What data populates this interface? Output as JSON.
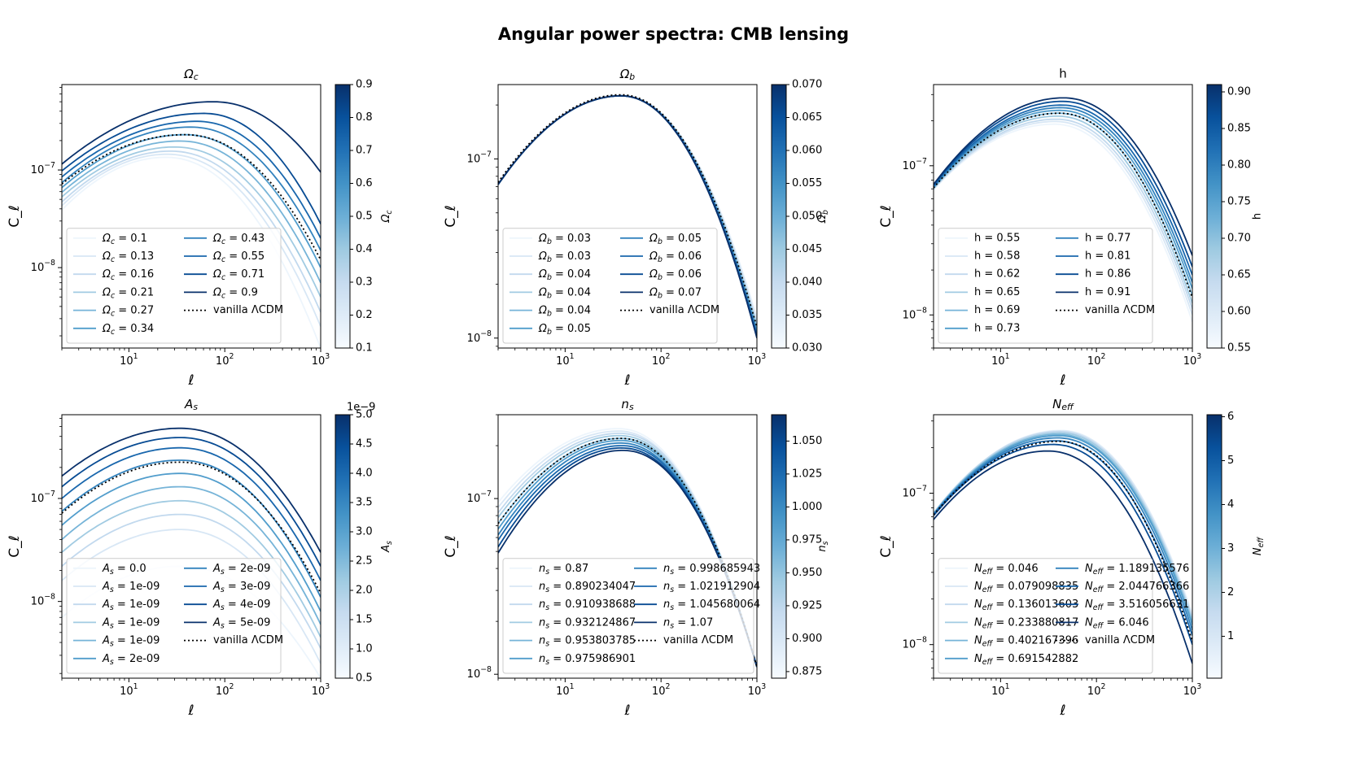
{
  "figure": {
    "title": "Angular power spectra: CMB lensing"
  },
  "style": {
    "line_color": "#000000",
    "ref_color": "#000000",
    "cmap_light": "#f7fbff",
    "cmap_dark": "#08306b"
  },
  "chart_data": [
    {
      "type": "line",
      "title": "Ω_c",
      "xlabel": "ℓ",
      "ylabel": "C_ℓ",
      "x_scale": "log",
      "y_scale": "log",
      "xlim": [
        2,
        1000
      ],
      "ylim": [
        1.5e-09,
        7.5e-07
      ],
      "x_ticks": [
        "10^1",
        "10^2",
        "10^3"
      ],
      "y_ticks": [
        "10^-8",
        "10^-7"
      ],
      "peaks": [
        [
          24,
          1.35e-07
        ],
        [
          25,
          1.45e-07
        ],
        [
          27,
          1.56e-07
        ],
        [
          30,
          1.72e-07
        ],
        [
          34,
          1.98e-07
        ],
        [
          38,
          2.3e-07
        ],
        [
          44,
          2.75e-07
        ],
        [
          51,
          3.15e-07
        ],
        [
          60,
          3.8e-07
        ],
        [
          75,
          5e-07
        ]
      ],
      "series": [
        {
          "name": "Ω_c = 0.1",
          "values": [
            3.9e-08,
            1.35e-07,
            1.5e-09
          ]
        },
        {
          "name": "Ω_c = 0.13",
          "values": [
            4.3e-08,
            1.45e-07,
            2.5e-09
          ]
        },
        {
          "name": "Ω_c = 0.16",
          "values": [
            4.7e-08,
            1.56e-07,
            3.5e-09
          ]
        },
        {
          "name": "Ω_c = 0.21",
          "values": [
            5.3e-08,
            1.72e-07,
            5e-09
          ]
        },
        {
          "name": "Ω_c = 0.27",
          "values": [
            5.9e-08,
            1.98e-07,
            7e-09
          ]
        },
        {
          "name": "Ω_c = 0.34",
          "values": [
            6.6e-08,
            2.3e-07,
            1e-08
          ]
        },
        {
          "name": "Ω_c = 0.43",
          "values": [
            7.4e-08,
            2.75e-07,
            1.5e-08
          ]
        },
        {
          "name": "Ω_c = 0.55",
          "values": [
            8.5e-08,
            3.15e-07,
            2e-08
          ]
        },
        {
          "name": "Ω_c = 0.71",
          "values": [
            9.8e-08,
            3.8e-07,
            2.8e-08
          ]
        },
        {
          "name": "Ω_c = 0.9",
          "values": [
            1.15e-07,
            5e-07,
            9.5e-08
          ]
        }
      ],
      "reference": {
        "name": "vanilla ΛCDM",
        "values": [
          7.2e-08,
          2.3e-07,
          1.2e-08
        ]
      },
      "colorbar": {
        "label": "Ω_c",
        "min": 0.1,
        "max": 0.9,
        "ticks": [
          "0.1",
          "0.2",
          "0.3",
          "0.4",
          "0.5",
          "0.6",
          "0.7",
          "0.8",
          "0.9"
        ],
        "offset": ""
      },
      "legend": "lower-left"
    },
    {
      "type": "line",
      "title": "Ω_b",
      "xlabel": "ℓ",
      "ylabel": "C_ℓ",
      "x_scale": "log",
      "y_scale": "log",
      "xlim": [
        2,
        1000
      ],
      "ylim": [
        8.8e-09,
        2.6e-07
      ],
      "x_ticks": [
        "10^1",
        "10^2",
        "10^3"
      ],
      "y_ticks": [
        "10^-8",
        "10^-7"
      ],
      "peaks": [
        [
          38,
          2.25e-07
        ],
        [
          38,
          2.25e-07
        ],
        [
          38,
          2.25e-07
        ],
        [
          38,
          2.25e-07
        ],
        [
          38,
          2.25e-07
        ],
        [
          38,
          2.25e-07
        ],
        [
          38,
          2.25e-07
        ],
        [
          38,
          2.25e-07
        ],
        [
          38,
          2.25e-07
        ],
        [
          38,
          2.25e-07
        ]
      ],
      "series": [
        {
          "name": "Ω_b = 0.03",
          "values": [
            7.2e-08,
            2.25e-07,
            1.3e-08
          ]
        },
        {
          "name": "Ω_b = 0.03",
          "values": [
            7.2e-08,
            2.25e-07,
            1.25e-08
          ]
        },
        {
          "name": "Ω_b = 0.04",
          "values": [
            7.2e-08,
            2.25e-07,
            1.2e-08
          ]
        },
        {
          "name": "Ω_b = 0.04",
          "values": [
            7.2e-08,
            2.25e-07,
            1.16e-08
          ]
        },
        {
          "name": "Ω_b = 0.04",
          "values": [
            7.2e-08,
            2.25e-07,
            1.12e-08
          ]
        },
        {
          "name": "Ω_b = 0.05",
          "values": [
            7.2e-08,
            2.25e-07,
            1.09e-08
          ]
        },
        {
          "name": "Ω_b = 0.05",
          "values": [
            7.2e-08,
            2.25e-07,
            1.06e-08
          ]
        },
        {
          "name": "Ω_b = 0.06",
          "values": [
            7.2e-08,
            2.25e-07,
            1.04e-08
          ]
        },
        {
          "name": "Ω_b = 0.06",
          "values": [
            7.2e-08,
            2.25e-07,
            1.02e-08
          ]
        },
        {
          "name": "Ω_b = 0.07",
          "values": [
            7.2e-08,
            2.25e-07,
            1e-08
          ]
        }
      ],
      "reference": {
        "name": "vanilla ΛCDM",
        "values": [
          7.4e-08,
          2.28e-07,
          1.15e-08
        ]
      },
      "colorbar": {
        "label": "Ω_b",
        "min": 0.03,
        "max": 0.07,
        "ticks": [
          "0.030",
          "0.035",
          "0.040",
          "0.045",
          "0.050",
          "0.055",
          "0.060",
          "0.065",
          "0.070"
        ],
        "offset": ""
      },
      "legend": "lower-left"
    },
    {
      "type": "line",
      "title": "h",
      "xlabel": "ℓ",
      "ylabel": "C_ℓ",
      "x_scale": "log",
      "y_scale": "log",
      "xlim": [
        2,
        1000
      ],
      "ylim": [
        6e-09,
        3.5e-07
      ],
      "x_ticks": [
        "10^1",
        "10^2",
        "10^3"
      ],
      "y_ticks": [
        "10^-8",
        "10^-7"
      ],
      "peaks": [
        [
          36,
          1.9e-07
        ],
        [
          37,
          1.98e-07
        ],
        [
          38,
          2.05e-07
        ],
        [
          39,
          2.15e-07
        ],
        [
          40,
          2.25e-07
        ],
        [
          41,
          2.35e-07
        ],
        [
          42,
          2.45e-07
        ],
        [
          43,
          2.55e-07
        ],
        [
          44,
          2.7e-07
        ],
        [
          45,
          2.85e-07
        ]
      ],
      "series": [
        {
          "name": "h = 0.55",
          "values": [
            6.9e-08,
            1.9e-07,
            9e-09
          ]
        },
        {
          "name": "h = 0.58",
          "values": [
            6.95e-08,
            1.98e-07,
            1e-08
          ]
        },
        {
          "name": "h = 0.62",
          "values": [
            7e-08,
            2.05e-07,
            1.1e-08
          ]
        },
        {
          "name": "h = 0.65",
          "values": [
            7.05e-08,
            2.15e-07,
            1.2e-08
          ]
        },
        {
          "name": "h = 0.69",
          "values": [
            7.1e-08,
            2.25e-07,
            1.35e-08
          ]
        },
        {
          "name": "h = 0.73",
          "values": [
            7.15e-08,
            2.35e-07,
            1.5e-08
          ]
        },
        {
          "name": "h = 0.77",
          "values": [
            7.2e-08,
            2.45e-07,
            1.65e-08
          ]
        },
        {
          "name": "h = 0.81",
          "values": [
            7.3e-08,
            2.55e-07,
            1.85e-08
          ]
        },
        {
          "name": "h = 0.86",
          "values": [
            7.4e-08,
            2.7e-07,
            2.1e-08
          ]
        },
        {
          "name": "h = 0.91",
          "values": [
            7.5e-08,
            2.85e-07,
            2.5e-08
          ]
        }
      ],
      "reference": {
        "name": "vanilla ΛCDM",
        "values": [
          7.1e-08,
          2.25e-07,
          1.3e-08
        ]
      },
      "colorbar": {
        "label": "h",
        "min": 0.55,
        "max": 0.91,
        "ticks": [
          "0.55",
          "0.60",
          "0.65",
          "0.70",
          "0.75",
          "0.80",
          "0.85",
          "0.90"
        ],
        "offset": ""
      },
      "legend": "lower-left"
    },
    {
      "type": "line",
      "title": "A_s",
      "xlabel": "ℓ",
      "ylabel": "C_ℓ",
      "x_scale": "log",
      "y_scale": "log",
      "xlim": [
        2,
        1000
      ],
      "ylim": [
        1.8e-09,
        6.5e-07
      ],
      "x_ticks": [
        "10^1",
        "10^2",
        "10^3"
      ],
      "y_ticks": [
        "10^-8",
        "10^-7"
      ],
      "peaks": [
        [
          34,
          2.2e-08
        ],
        [
          34,
          5e-08
        ],
        [
          34,
          7e-08
        ],
        [
          34,
          9.5e-08
        ],
        [
          34,
          1.3e-07
        ],
        [
          34,
          1.75e-07
        ],
        [
          34,
          2.35e-07
        ],
        [
          34,
          3.1e-07
        ],
        [
          34,
          3.9e-07
        ],
        [
          34,
          4.8e-07
        ]
      ],
      "series": [
        {
          "name": "A_s = 0.0",
          "values": [
            7e-09,
            2.2e-08,
            1.8e-09
          ]
        },
        {
          "name": "A_s = 1e-09",
          "values": [
            1.6e-08,
            5e-08,
            2.5e-09
          ]
        },
        {
          "name": "A_s = 1e-09",
          "values": [
            2.2e-08,
            7e-08,
            3.5e-09
          ]
        },
        {
          "name": "A_s = 1e-09",
          "values": [
            3e-08,
            9.5e-08,
            4.5e-09
          ]
        },
        {
          "name": "A_s = 1e-09",
          "values": [
            4e-08,
            1.3e-07,
            6e-09
          ]
        },
        {
          "name": "A_s = 2e-09",
          "values": [
            5.5e-08,
            1.75e-07,
            8e-09
          ]
        },
        {
          "name": "A_s = 2e-09",
          "values": [
            7.5e-08,
            2.35e-07,
            1.1e-08
          ]
        },
        {
          "name": "A_s = 3e-09",
          "values": [
            1e-07,
            3.1e-07,
            1.6e-08
          ]
        },
        {
          "name": "A_s = 4e-09",
          "values": [
            1.3e-07,
            3.9e-07,
            2.2e-08
          ]
        },
        {
          "name": "A_s = 5e-09",
          "values": [
            1.65e-07,
            4.8e-07,
            3e-08
          ]
        }
      ],
      "reference": {
        "name": "vanilla ΛCDM",
        "values": [
          7.2e-08,
          2.25e-07,
          1.2e-08
        ]
      },
      "colorbar": {
        "label": "A_s",
        "min": 0.5,
        "max": 5.0,
        "ticks": [
          "0.5",
          "1.0",
          "1.5",
          "2.0",
          "2.5",
          "3.0",
          "3.5",
          "4.0",
          "4.5",
          "5.0"
        ],
        "offset": "1e−9"
      },
      "legend": "lower-left"
    },
    {
      "type": "line",
      "title": "n_s",
      "xlabel": "ℓ",
      "ylabel": "C_ℓ",
      "x_scale": "log",
      "y_scale": "log",
      "xlim": [
        2,
        1000
      ],
      "ylim": [
        9.5e-09,
        3e-07
      ],
      "x_ticks": [
        "10^1",
        "10^2",
        "10^3"
      ],
      "y_ticks": [
        "10^-8",
        "10^-7"
      ],
      "peaks": [
        [
          36,
          2.5e-07
        ],
        [
          36,
          2.42e-07
        ],
        [
          37,
          2.35e-07
        ],
        [
          37,
          2.28e-07
        ],
        [
          38,
          2.2e-07
        ],
        [
          38,
          2.14e-07
        ],
        [
          38,
          2.07e-07
        ],
        [
          39,
          2e-07
        ],
        [
          39,
          1.94e-07
        ],
        [
          40,
          1.88e-07
        ]
      ],
      "series": [
        {
          "name": "n_s = 0.87",
          "values": [
            9.5e-08,
            2.5e-07,
            1.1e-08
          ]
        },
        {
          "name": "n_s = 0.890234047",
          "values": [
            8.9e-08,
            2.42e-07,
            1.1e-08
          ]
        },
        {
          "name": "n_s = 0.910938688",
          "values": [
            8.3e-08,
            2.35e-07,
            1.1e-08
          ]
        },
        {
          "name": "n_s = 0.932124867",
          "values": [
            7.8e-08,
            2.28e-07,
            1.1e-08
          ]
        },
        {
          "name": "n_s = 0.953803785",
          "values": [
            7.2e-08,
            2.2e-07,
            1.1e-08
          ]
        },
        {
          "name": "n_s = 0.975986901",
          "values": [
            6.7e-08,
            2.14e-07,
            1.1e-08
          ]
        },
        {
          "name": "n_s = 0.998685943",
          "values": [
            6.2e-08,
            2.07e-07,
            1.1e-08
          ]
        },
        {
          "name": "n_s = 1.021912904",
          "values": [
            5.8e-08,
            2e-07,
            1.1e-08
          ]
        },
        {
          "name": "n_s = 1.045680064",
          "values": [
            5.3e-08,
            1.94e-07,
            1.1e-08
          ]
        },
        {
          "name": "n_s = 1.07",
          "values": [
            4.9e-08,
            1.88e-07,
            1.1e-08
          ]
        }
      ],
      "reference": {
        "name": "vanilla ΛCDM",
        "values": [
          7.2e-08,
          2.2e-07,
          1.1e-08
        ]
      },
      "colorbar": {
        "label": "n_s",
        "min": 0.87,
        "max": 1.07,
        "ticks": [
          "0.875",
          "0.900",
          "0.925",
          "0.950",
          "0.975",
          "1.000",
          "1.025",
          "1.050"
        ],
        "offset": ""
      },
      "legend": "lower-left"
    },
    {
      "type": "line",
      "title": "N_eff",
      "xlabel": "ℓ",
      "ylabel": "C_ℓ",
      "x_scale": "log",
      "y_scale": "log",
      "xlim": [
        2,
        1000
      ],
      "ylim": [
        6e-09,
        3.3e-07
      ],
      "x_ticks": [
        "10^1",
        "10^2",
        "10^3"
      ],
      "y_ticks": [
        "10^-8",
        "10^-7"
      ],
      "peaks": [
        [
          42,
          2.6e-07
        ],
        [
          42,
          2.58e-07
        ],
        [
          41,
          2.55e-07
        ],
        [
          41,
          2.5e-07
        ],
        [
          40,
          2.45e-07
        ],
        [
          40,
          2.4e-07
        ],
        [
          39,
          2.32e-07
        ],
        [
          37,
          2.22e-07
        ],
        [
          35,
          2.1e-07
        ],
        [
          31,
          1.9e-07
        ]
      ],
      "series": [
        {
          "name": "N_eff = 0.046",
          "values": [
            7.4e-08,
            2.6e-07,
            1.6e-08
          ]
        },
        {
          "name": "N_eff = 0.079098835",
          "values": [
            7.4e-08,
            2.58e-07,
            1.55e-08
          ]
        },
        {
          "name": "N_eff = 0.136013603",
          "values": [
            7.4e-08,
            2.55e-07,
            1.5e-08
          ]
        },
        {
          "name": "N_eff = 0.233880817",
          "values": [
            7.35e-08,
            2.5e-07,
            1.45e-08
          ]
        },
        {
          "name": "N_eff = 0.402167396",
          "values": [
            7.3e-08,
            2.45e-07,
            1.4e-08
          ]
        },
        {
          "name": "N_eff = 0.691542882",
          "values": [
            7.3e-08,
            2.4e-07,
            1.35e-08
          ]
        },
        {
          "name": "N_eff = 1.189135576",
          "values": [
            7.25e-08,
            2.32e-07,
            1.25e-08
          ]
        },
        {
          "name": "N_eff = 2.044766366",
          "values": [
            7.2e-08,
            2.22e-07,
            1.15e-08
          ]
        },
        {
          "name": "N_eff = 3.516056631",
          "values": [
            7.1e-08,
            2.1e-07,
            1e-08
          ]
        },
        {
          "name": "N_eff = 6.046",
          "values": [
            6.7e-08,
            1.9e-07,
            7.5e-09
          ]
        }
      ],
      "reference": {
        "name": "vanilla ΛCDM",
        "values": [
          7.2e-08,
          2.2e-07,
          1.05e-08
        ]
      },
      "colorbar": {
        "label": "N_eff",
        "min": 0.046,
        "max": 6.046,
        "ticks": [
          "1",
          "2",
          "3",
          "4",
          "5",
          "6"
        ],
        "offset": ""
      },
      "legend": "lower-left"
    }
  ]
}
